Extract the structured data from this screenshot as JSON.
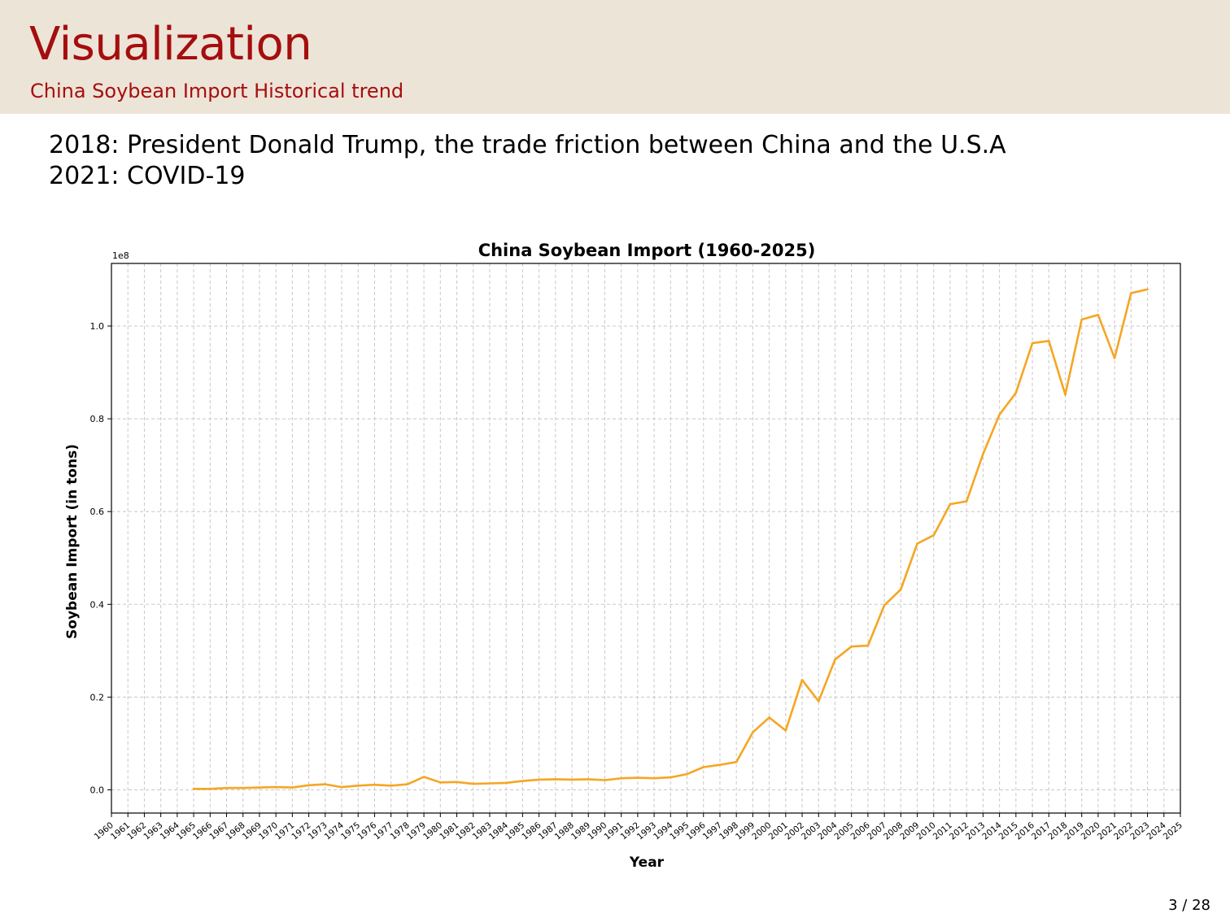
{
  "slide": {
    "title": "Visualization",
    "subtitle": "China Soybean Import Historical trend",
    "notes": [
      "2018: President Donald Trump, the trade friction between China and the U.S.A",
      "2021: COVID-19"
    ],
    "page_number": "3 / 28"
  },
  "colors": {
    "accent": "#a50e0e",
    "header_bg": "#ede4d8",
    "line": "#f5a623"
  },
  "chart_data": {
    "type": "line",
    "title": "China Soybean Import (1960-2025)",
    "xlabel": "Year",
    "ylabel": "Soybean Import (in tons)",
    "y_scale_label": "1e8",
    "y_ticks": [
      "0.0",
      "0.2",
      "0.4",
      "0.6",
      "0.8",
      "1.0"
    ],
    "x_ticks": [
      "1960",
      "1961",
      "1962",
      "1963",
      "1964",
      "1965",
      "1966",
      "1967",
      "1968",
      "1969",
      "1970",
      "1971",
      "1972",
      "1973",
      "1974",
      "1975",
      "1976",
      "1977",
      "1978",
      "1979",
      "1980",
      "1981",
      "1982",
      "1983",
      "1984",
      "1985",
      "1986",
      "1987",
      "1988",
      "1989",
      "1990",
      "1991",
      "1992",
      "1993",
      "1994",
      "1995",
      "1996",
      "1997",
      "1998",
      "1999",
      "2000",
      "2001",
      "2002",
      "2003",
      "2004",
      "2005",
      "2006",
      "2007",
      "2008",
      "2009",
      "2010",
      "2011",
      "2012",
      "2013",
      "2014",
      "2015",
      "2016",
      "2017",
      "2018",
      "2019",
      "2020",
      "2021",
      "2022",
      "2023",
      "2024",
      "2025"
    ],
    "xlim": [
      1960,
      2025
    ],
    "ylim": [
      -5000000,
      113500000
    ],
    "grid": true,
    "series": [
      {
        "color": "#f5a623",
        "x": [
          1965,
          1966,
          1967,
          1968,
          1969,
          1970,
          1971,
          1972,
          1973,
          1974,
          1975,
          1976,
          1977,
          1978,
          1979,
          1980,
          1981,
          1982,
          1983,
          1984,
          1985,
          1986,
          1987,
          1988,
          1989,
          1990,
          1991,
          1992,
          1993,
          1994,
          1995,
          1996,
          1997,
          1998,
          1999,
          2000,
          2001,
          2002,
          2003,
          2004,
          2005,
          2006,
          2007,
          2008,
          2009,
          2010,
          2011,
          2012,
          2013,
          2014,
          2015,
          2016,
          2017,
          2018,
          2019,
          2020,
          2021,
          2022,
          2023
        ],
        "values": [
          200000,
          200000,
          400000,
          400000,
          500000,
          600000,
          500000,
          1000000,
          1200000,
          600000,
          900000,
          1100000,
          900000,
          1200000,
          2800000,
          1600000,
          1700000,
          1300000,
          1400000,
          1500000,
          1900000,
          2200000,
          2300000,
          2200000,
          2300000,
          2100000,
          2500000,
          2600000,
          2500000,
          2700000,
          3400000,
          4900000,
          5400000,
          6000000,
          12400000,
          15600000,
          12800000,
          23700000,
          19100000,
          28100000,
          30900000,
          31100000,
          39800000,
          43200000,
          53100000,
          54900000,
          61600000,
          62200000,
          72400000,
          80900000,
          85600000,
          96300000,
          96800000,
          85200000,
          101400000,
          102400000,
          93100000,
          107100000,
          107900000
        ]
      }
    ]
  }
}
